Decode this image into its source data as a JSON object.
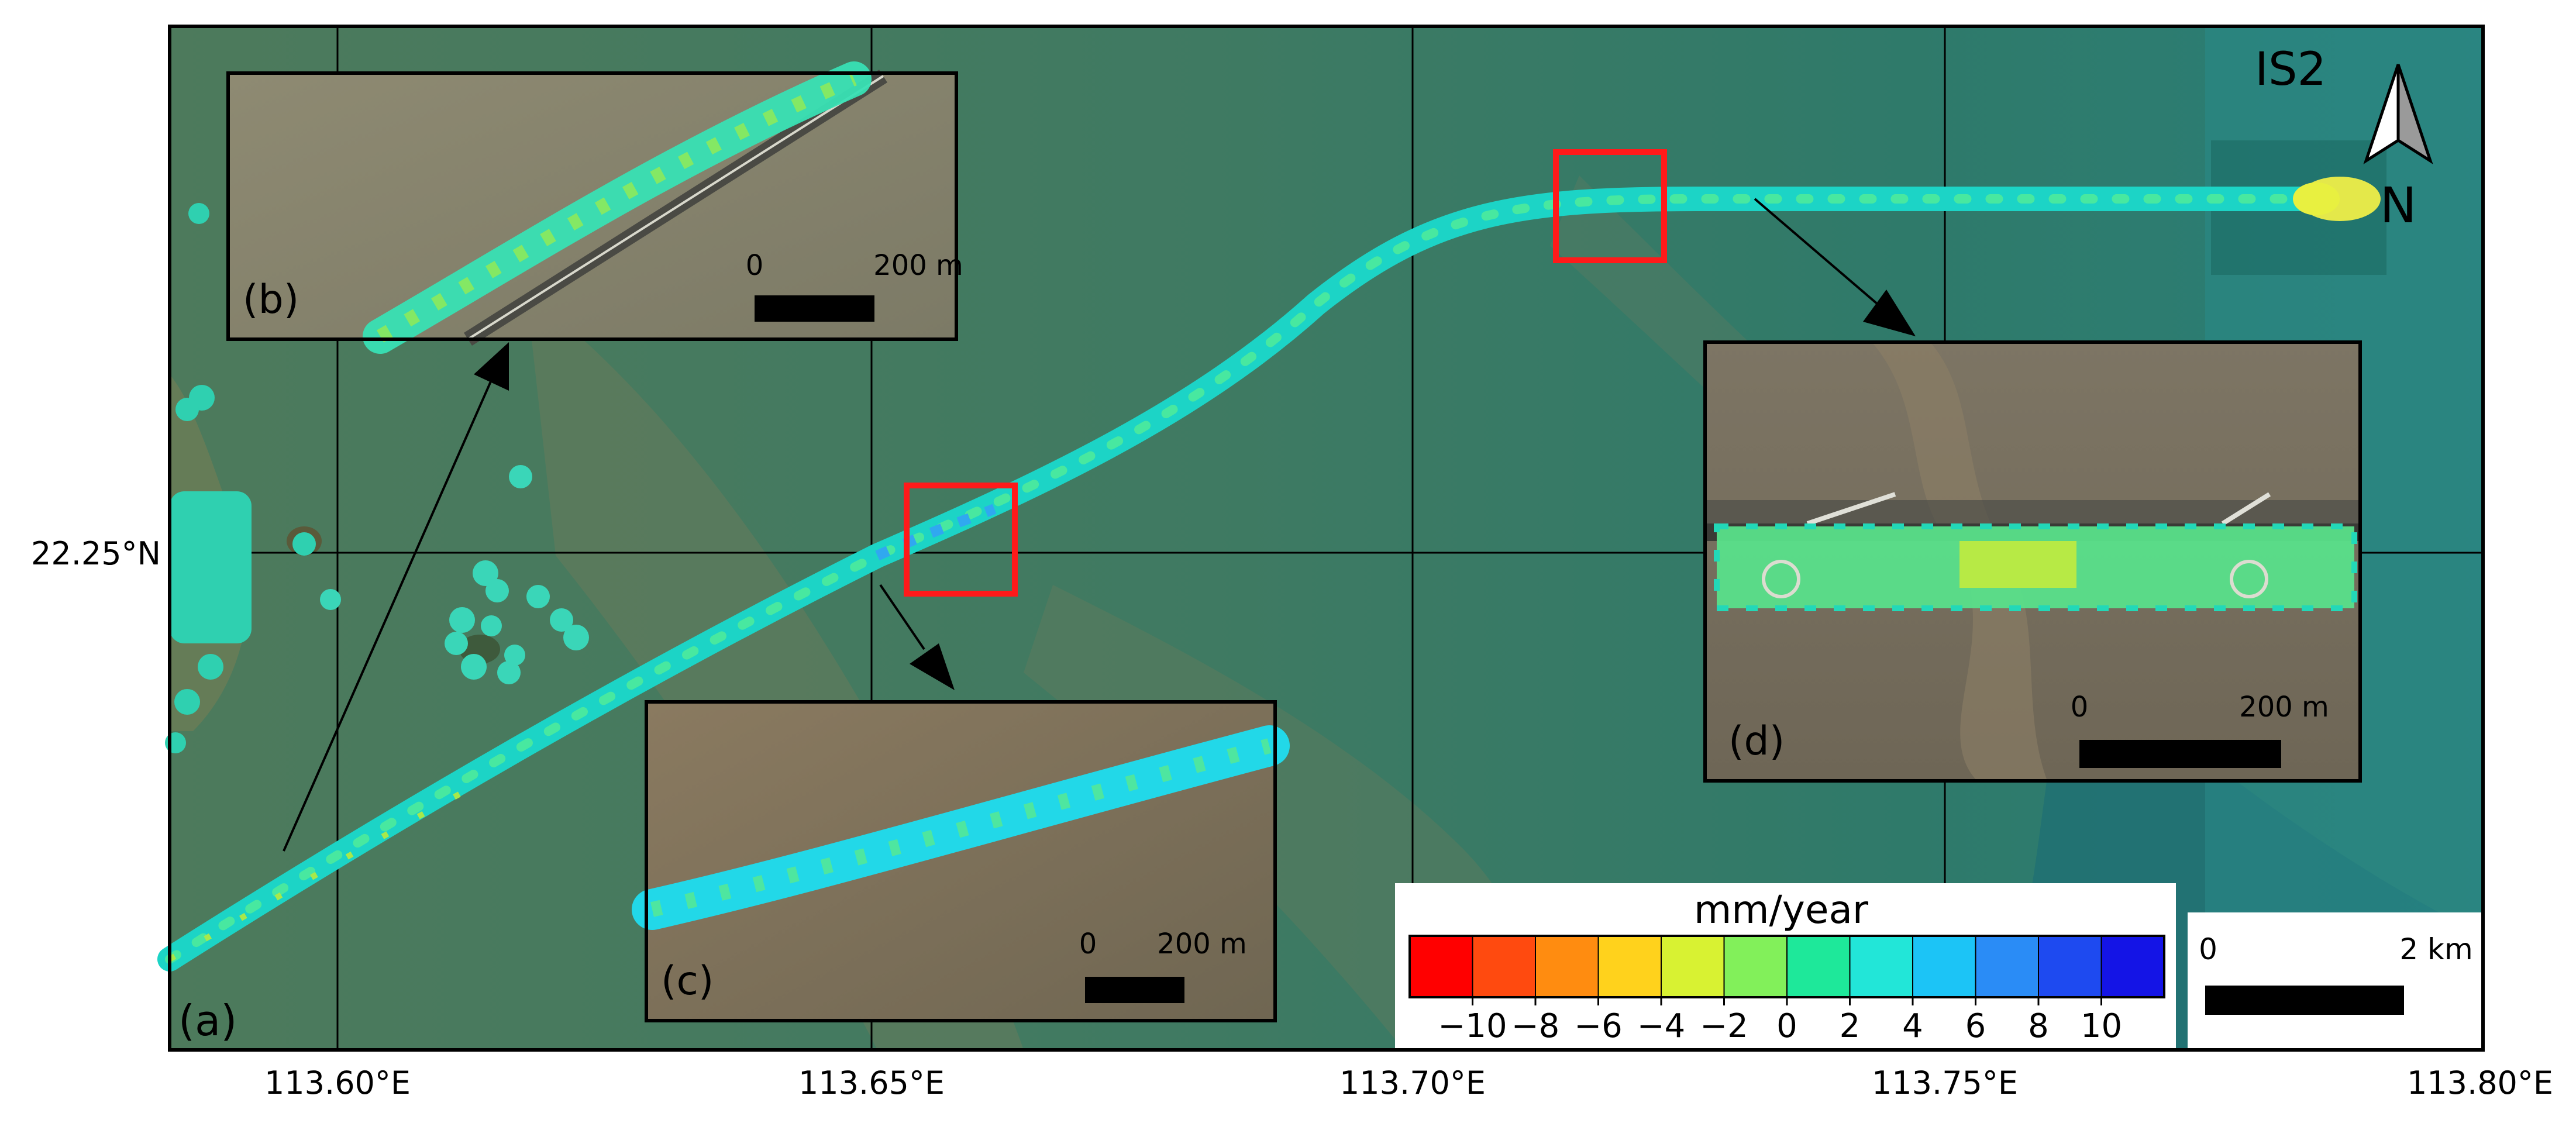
{
  "map": {
    "lon_labels": [
      "113.60°E",
      "113.65°E",
      "113.70°E",
      "113.75°E",
      "113.80°E"
    ],
    "lat_labels": [
      "22.25°N"
    ],
    "site_label": "IS2",
    "north_label": "N",
    "panel_a_label": "(a)"
  },
  "insets": [
    {
      "id": "b",
      "label": "(b)",
      "scale_zero": "0",
      "scale_end": "200 m"
    },
    {
      "id": "c",
      "label": "(c)",
      "scale_zero": "0",
      "scale_end": "200 m"
    },
    {
      "id": "d",
      "label": "(d)",
      "scale_zero": "0",
      "scale_end": "200 m"
    }
  ],
  "legend": {
    "title": "mm/year",
    "ticks": [
      "−10",
      "−8",
      "−6",
      "−4",
      "−2",
      "0",
      "2",
      "4",
      "6",
      "8",
      "10"
    ],
    "colors": [
      "#ff0000",
      "#ff4a0f",
      "#ff8c10",
      "#ffd21c",
      "#d8f232",
      "#82f05a",
      "#1ee89a",
      "#22e6d8",
      "#1cc4f6",
      "#2a8cf6",
      "#1e4af0",
      "#1414e6"
    ]
  },
  "scalebar": {
    "zero": "0",
    "end": "2 km"
  },
  "colors": {
    "water": "#3f7f64",
    "track": "#28d8c8",
    "highlight_box": "#ff1a1a",
    "frame": "#000000"
  }
}
